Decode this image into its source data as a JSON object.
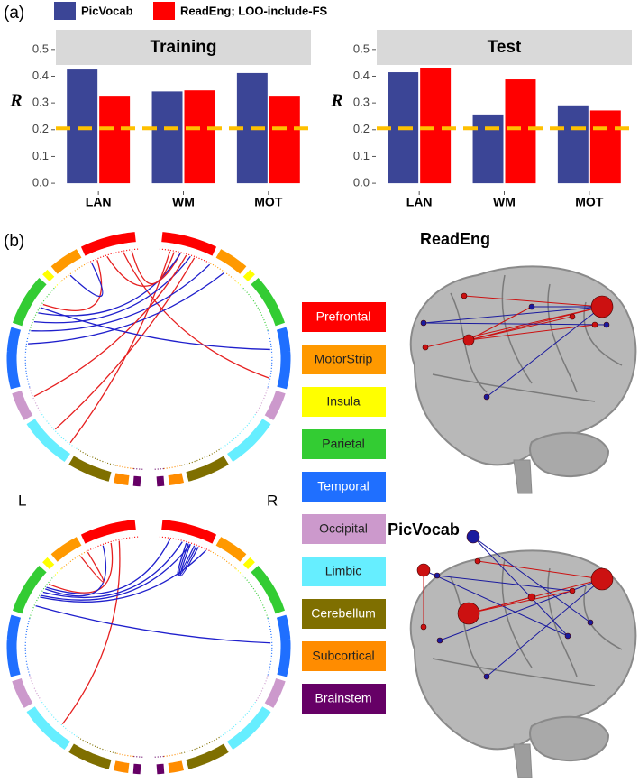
{
  "chart_data": [
    {
      "type": "bar",
      "title": "Training",
      "y_label": "R",
      "categories": [
        "LAN",
        "WM",
        "MOT"
      ],
      "series": [
        {
          "name": "PicVocab",
          "color": "#3b4596",
          "values": [
            0.425,
            0.343,
            0.412
          ]
        },
        {
          "name": "ReadEng; LOO-include-FS",
          "color": "#ff0000",
          "values": [
            0.327,
            0.347,
            0.327
          ]
        }
      ],
      "ylim": [
        -0.03,
        0.55
      ],
      "yticks": [
        {
          "value": 0,
          "label": "0.0"
        },
        0.1,
        0.2,
        0.3,
        0.4,
        0.5
      ],
      "hline": 0.205,
      "hline_color": "#ffc000"
    },
    {
      "type": "bar",
      "title": "Test",
      "y_label": "R",
      "categories": [
        "LAN",
        "WM",
        "MOT"
      ],
      "series": [
        {
          "color": "#3b4596",
          "values": [
            0.415,
            0.257,
            0.291
          ]
        },
        {
          "color": "#ff0000",
          "values": [
            0.432,
            0.388,
            0.272
          ]
        }
      ],
      "ylim": [
        -0.03,
        0.55
      ],
      "yticks": [
        {
          "value": 0,
          "label": "0.0"
        },
        0.1,
        0.2,
        0.3,
        0.4,
        0.5
      ],
      "hline": 0.205,
      "hline_color": "#ffc000"
    }
  ],
  "panel_labels": [
    "(a)",
    "(b)"
  ],
  "hemisphere_labels": [
    "L",
    "R"
  ],
  "brain_titles": [
    "ReadEng",
    "PicVocab"
  ],
  "regions": [
    {
      "label": "Prefrontal",
      "color": "#ff0000"
    },
    {
      "label": "MotorStrip",
      "color": "#ff9900"
    },
    {
      "label": "Insula",
      "color": "#ffff00"
    },
    {
      "label": "Parietal",
      "color": "#33cc33"
    },
    {
      "label": "Temporal",
      "color": "#1f6fff"
    },
    {
      "label": "Occipital",
      "color": "#cc99cc"
    },
    {
      "label": "Limbic",
      "color": "#66eeff"
    },
    {
      "label": "Cerebellum",
      "color": "#7f6f00"
    },
    {
      "label": "Subcortical",
      "color": "#ff8c00"
    },
    {
      "label": "Brainstem",
      "color": "#660066"
    }
  ]
}
